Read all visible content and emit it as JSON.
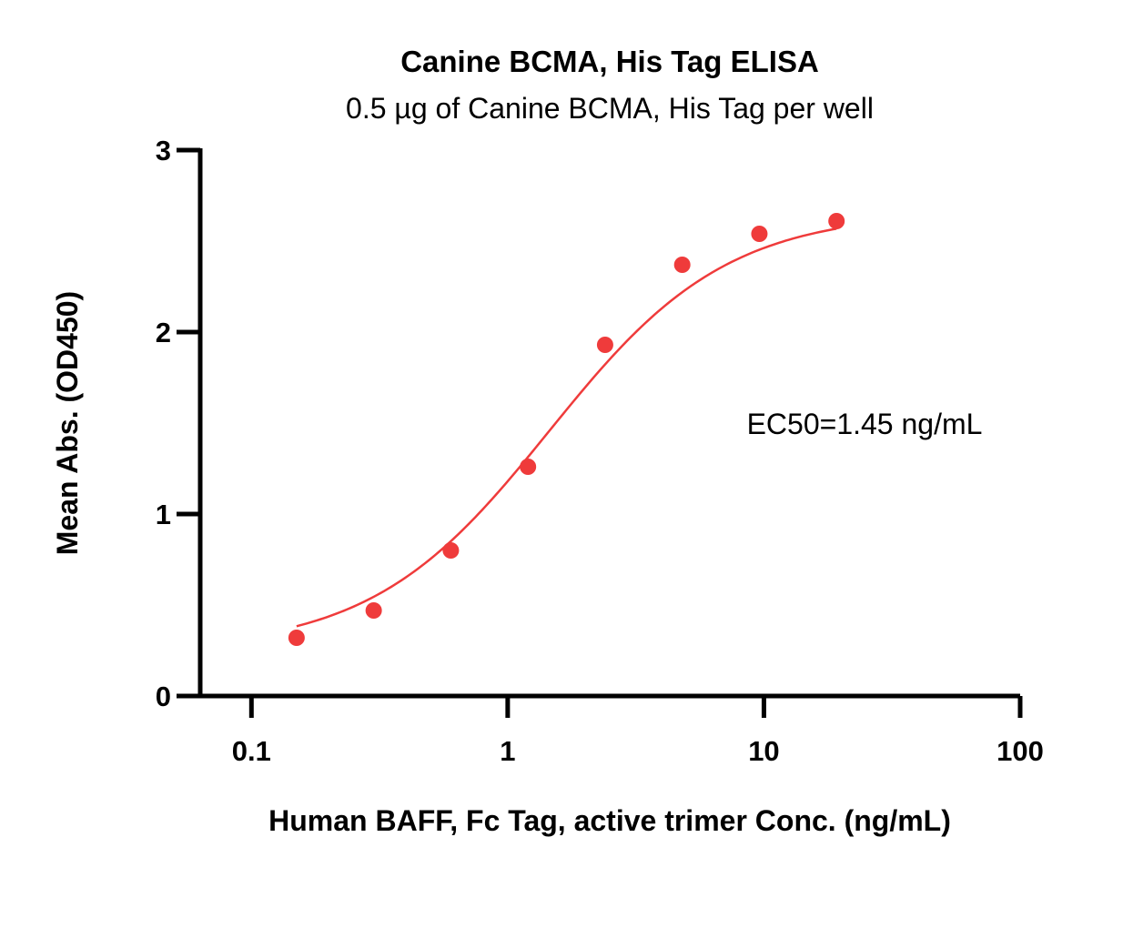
{
  "chart_data": {
    "type": "scatter",
    "title": "Canine BCMA, His Tag ELISA",
    "subtitle": "0.5 µg of Canine BCMA, His Tag per well",
    "xlabel": "Human BAFF, Fc Tag, active trimer Conc. (ng/mL)",
    "ylabel": "Mean Abs. (OD450)",
    "x_scale": "log",
    "xlim": [
      0.0631,
      100
    ],
    "ylim": [
      0,
      3
    ],
    "x_ticks": [
      {
        "value": 0.1,
        "label": "0.1"
      },
      {
        "value": 1,
        "label": "1"
      },
      {
        "value": 10,
        "label": "10"
      },
      {
        "value": 100,
        "label": "100"
      }
    ],
    "y_ticks": [
      {
        "value": 0,
        "label": "0"
      },
      {
        "value": 1,
        "label": "1"
      },
      {
        "value": 2,
        "label": "2"
      },
      {
        "value": 3,
        "label": "3"
      }
    ],
    "annotation": "EC50=1.45 ng/mL",
    "grid": false,
    "series": [
      {
        "color": "#ef3b3b",
        "x": [
          0.15,
          0.3,
          0.6,
          1.2,
          2.4,
          4.8,
          9.6,
          19.2
        ],
        "y": [
          0.32,
          0.47,
          0.8,
          1.26,
          1.93,
          2.37,
          2.54,
          2.61
        ]
      }
    ],
    "fit_curve": {
      "color": "#ef3b3b",
      "x_range": [
        0.15,
        19.2
      ],
      "bottom": 0.25,
      "top": 2.66,
      "ec50": 1.45,
      "hill": 1.25
    }
  }
}
